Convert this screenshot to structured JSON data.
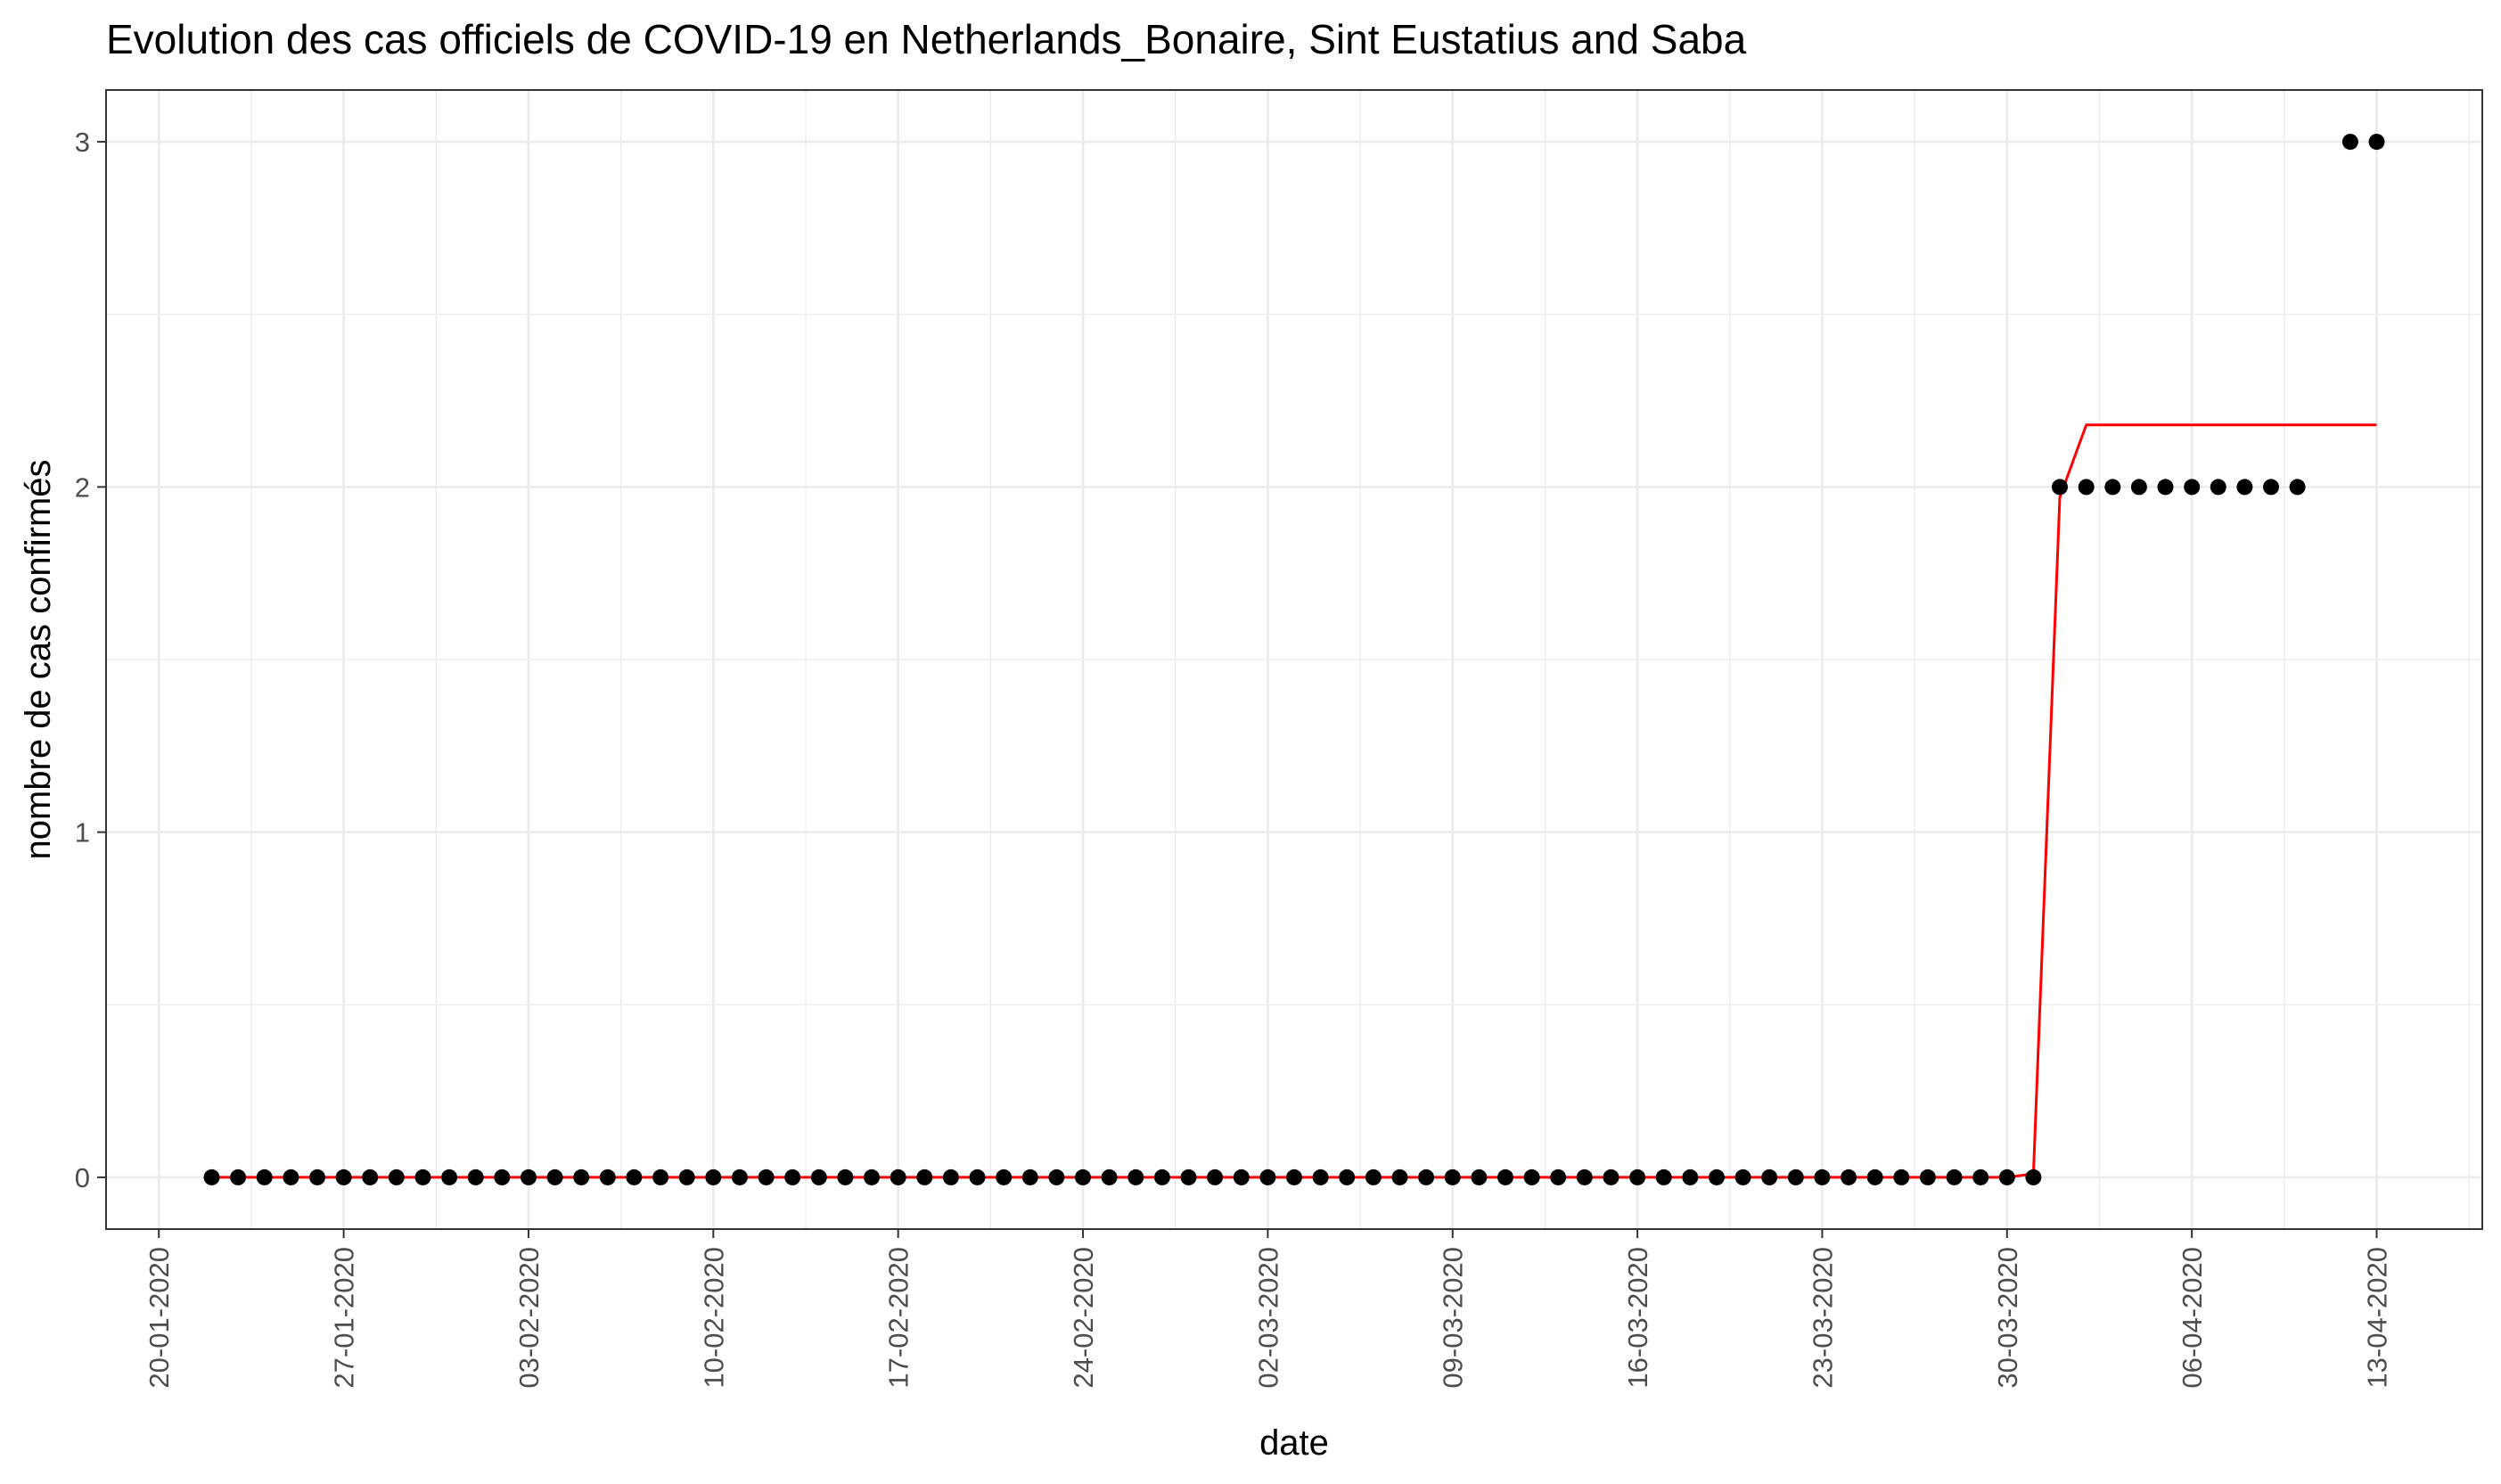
{
  "chart_data": {
    "type": "scatter",
    "title": "Evolution des cas officiels de COVID-19 en Netherlands_Bonaire, Sint Eustatius and Saba",
    "xlabel": "date",
    "ylabel": "nombre de cas confirmés",
    "x_axis_type": "date",
    "x_tick_labels": [
      "20-01-2020",
      "27-01-2020",
      "03-02-2020",
      "10-02-2020",
      "17-02-2020",
      "24-02-2020",
      "02-03-2020",
      "09-03-2020",
      "16-03-2020",
      "23-03-2020",
      "30-03-2020",
      "06-04-2020",
      "13-04-2020"
    ],
    "y_ticks": [
      0,
      1,
      2,
      3
    ],
    "xlim": [
      "2020-01-18",
      "2020-04-17"
    ],
    "ylim": [
      -0.15,
      3.15
    ],
    "grid": true,
    "point_color": "#000000",
    "line_color": "#ff0000",
    "series": [
      {
        "kind": "points",
        "runs": [
          {
            "start": "2020-01-22",
            "end": "2020-03-31",
            "value": 0
          },
          {
            "start": "2020-04-01",
            "end": "2020-04-10",
            "value": 2
          },
          {
            "start": "2020-04-12",
            "end": "2020-04-13",
            "value": 3
          }
        ]
      },
      {
        "kind": "line",
        "points": [
          [
            "2020-01-22",
            0
          ],
          [
            "2020-03-30",
            0
          ],
          [
            "2020-03-31",
            0.01
          ],
          [
            "2020-04-01",
            1.97
          ],
          [
            "2020-04-02",
            2.18
          ],
          [
            "2020-04-03",
            2.18
          ],
          [
            "2020-04-13",
            2.18
          ]
        ]
      }
    ]
  }
}
